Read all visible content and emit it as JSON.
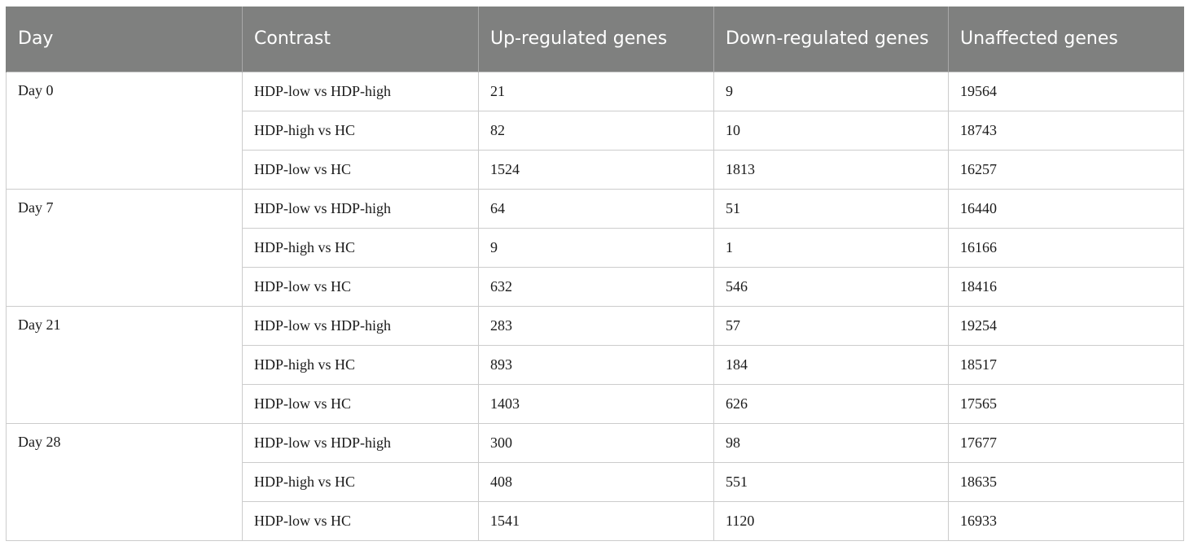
{
  "table": {
    "headers": [
      "Day",
      "Contrast",
      "Up-regulated genes",
      "Down-regulated genes",
      "Unaffected genes"
    ],
    "groups": [
      {
        "day": "Day 0",
        "rows": [
          [
            "HDP-low vs HDP-high",
            "21",
            "9",
            "19564"
          ],
          [
            "HDP-high vs HC",
            "82",
            "10",
            "18743"
          ],
          [
            "HDP-low vs HC",
            "1524",
            "1813",
            "16257"
          ]
        ]
      },
      {
        "day": "Day 7",
        "rows": [
          [
            "HDP-low vs HDP-high",
            "64",
            "51",
            "16440"
          ],
          [
            "HDP-high vs HC",
            "9",
            "1",
            "16166"
          ],
          [
            "HDP-low vs HC",
            "632",
            "546",
            "18416"
          ]
        ]
      },
      {
        "day": "Day 21",
        "rows": [
          [
            "HDP-low vs HDP-high",
            "283",
            "57",
            "19254"
          ],
          [
            "HDP-high vs HC",
            "893",
            "184",
            "18517"
          ],
          [
            "HDP-low vs HC",
            "1403",
            "626",
            "17565"
          ]
        ]
      },
      {
        "day": "Day 28",
        "rows": [
          [
            "HDP-low vs HDP-high",
            "300",
            "98",
            "17677"
          ],
          [
            "HDP-high vs HC",
            "408",
            "551",
            "18635"
          ],
          [
            "HDP-low vs HC",
            "1541",
            "1120",
            "16933"
          ]
        ]
      }
    ]
  },
  "colors": {
    "header_background": "#7f807f",
    "header_text": "#ffffff",
    "grid_line": "#cccccc"
  }
}
